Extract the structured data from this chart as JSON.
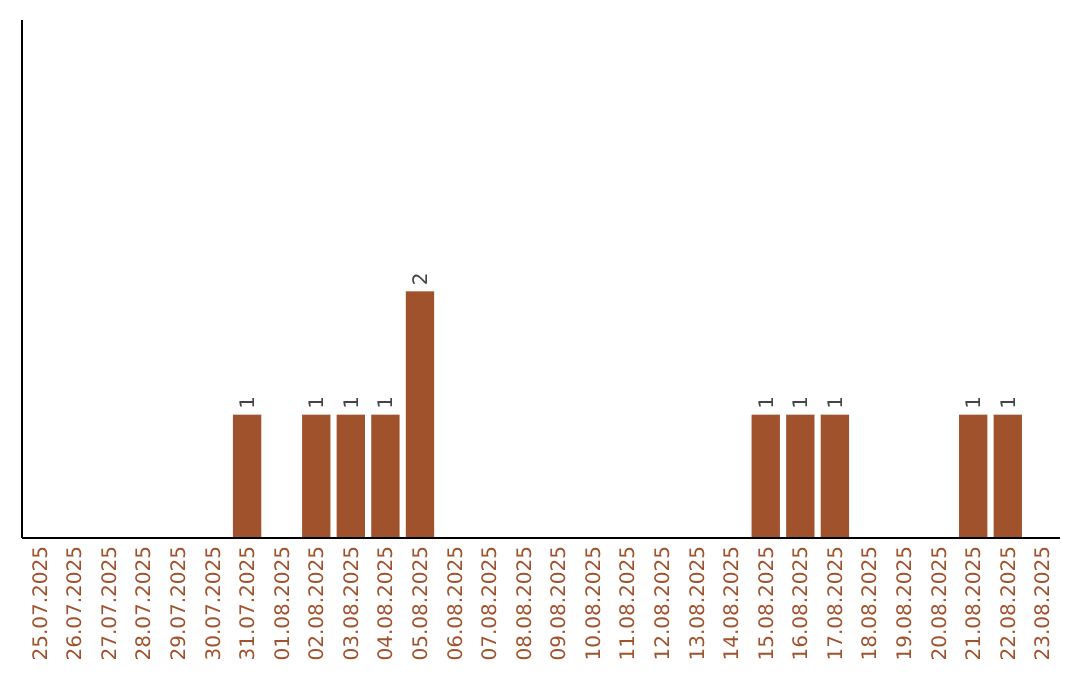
{
  "chart_data": {
    "type": "bar",
    "categories": [
      "25.07.2025",
      "26.07.2025",
      "27.07.2025",
      "28.07.2025",
      "29.07.2025",
      "30.07.2025",
      "31.07.2025",
      "01.08.2025",
      "02.08.2025",
      "03.08.2025",
      "04.08.2025",
      "05.08.2025",
      "06.08.2025",
      "07.08.2025",
      "08.08.2025",
      "09.08.2025",
      "10.08.2025",
      "11.08.2025",
      "12.08.2025",
      "13.08.2025",
      "14.08.2025",
      "15.08.2025",
      "16.08.2025",
      "17.08.2025",
      "18.08.2025",
      "19.08.2025",
      "20.08.2025",
      "21.08.2025",
      "22.08.2025",
      "23.08.2025"
    ],
    "values": [
      0,
      0,
      0,
      0,
      0,
      0,
      1,
      0,
      1,
      1,
      1,
      2,
      0,
      0,
      0,
      0,
      0,
      0,
      0,
      0,
      0,
      1,
      1,
      1,
      0,
      0,
      0,
      1,
      1,
      0
    ],
    "value_labels": [
      null,
      null,
      null,
      null,
      null,
      null,
      "1",
      null,
      "1",
      "1",
      "1",
      "2",
      null,
      null,
      null,
      null,
      null,
      null,
      null,
      null,
      null,
      "1",
      "1",
      "1",
      null,
      null,
      null,
      "1",
      "1",
      null
    ],
    "color": "#a0522d",
    "ylim": [
      0,
      4.2
    ],
    "tick_labels": "x"
  }
}
